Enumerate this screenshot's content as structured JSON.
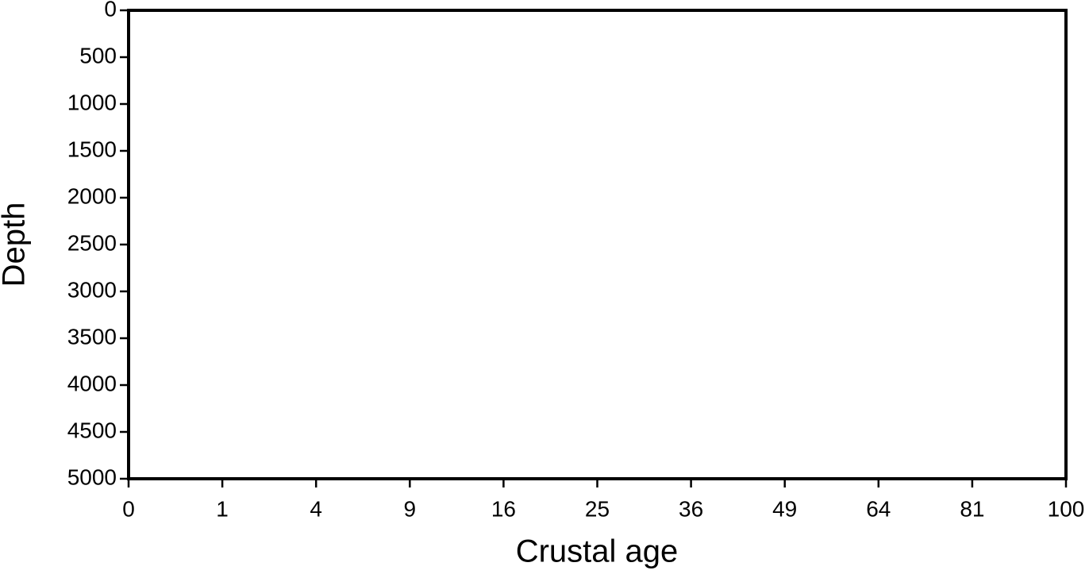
{
  "chart_data": {
    "type": "line",
    "xlabel": "Crustal age",
    "ylabel": "Depth",
    "xlim": [
      0,
      100
    ],
    "xticks": [
      0,
      1,
      4,
      9,
      16,
      25,
      36,
      49,
      64,
      81,
      100
    ],
    "xscale": "sqrt",
    "ylim": [
      0,
      5000
    ],
    "yticks": [
      0,
      500,
      1000,
      1500,
      2000,
      2500,
      3000,
      3500,
      4000,
      4500,
      5000
    ],
    "yinverted": true,
    "series": []
  }
}
